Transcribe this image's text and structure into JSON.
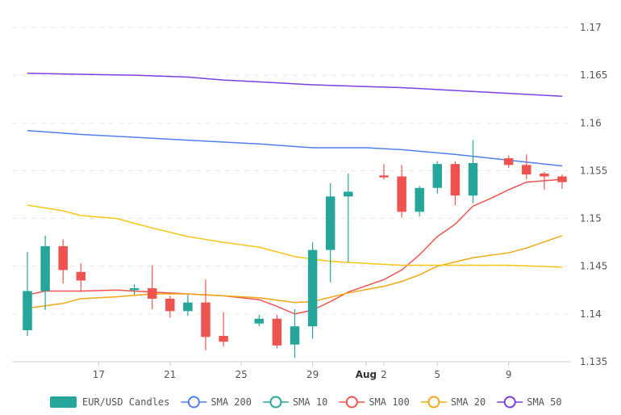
{
  "chart_data": {
    "type": "candlestick",
    "title": "",
    "ylim": [
      1.135,
      1.17
    ],
    "y_ticks": [
      "1.135",
      "1.14",
      "1.145",
      "1.15",
      "1.155",
      "1.16",
      "1.165",
      "1.17"
    ],
    "x_range": [
      "2021-07-13",
      "2021-08-12"
    ],
    "x_ticks": [
      {
        "date": "2021-07-17",
        "label": "17",
        "bold": false
      },
      {
        "date": "2021-07-21",
        "label": "21",
        "bold": false
      },
      {
        "date": "2021-07-25",
        "label": "25",
        "bold": false
      },
      {
        "date": "2021-07-29",
        "label": "29",
        "bold": false
      },
      {
        "date": "2021-08-01",
        "label": "Aug",
        "bold": true
      },
      {
        "date": "2021-08-02",
        "label": "2",
        "bold": false
      },
      {
        "date": "2021-08-05",
        "label": "5",
        "bold": false
      },
      {
        "date": "2021-08-09",
        "label": "9",
        "bold": false
      }
    ],
    "colors": {
      "up": "#26a69a",
      "down": "#ef5350",
      "grid": "#e6e6e6",
      "axis": "#cccccc"
    },
    "candles": [
      {
        "date": "2021-07-13",
        "open": 1.1383,
        "high": 1.1465,
        "low": 1.1377,
        "close": 1.1424
      },
      {
        "date": "2021-07-14",
        "open": 1.1424,
        "high": 1.1482,
        "low": 1.1404,
        "close": 1.1471
      },
      {
        "date": "2021-07-15",
        "open": 1.1471,
        "high": 1.1478,
        "low": 1.1432,
        "close": 1.1446
      },
      {
        "date": "2021-07-16",
        "open": 1.1444,
        "high": 1.1453,
        "low": 1.1423,
        "close": 1.1435
      },
      {
        "date": "2021-07-19",
        "open": 1.1425,
        "high": 1.1431,
        "low": 1.142,
        "close": 1.1427
      },
      {
        "date": "2021-07-20",
        "open": 1.1427,
        "high": 1.1451,
        "low": 1.1405,
        "close": 1.1416
      },
      {
        "date": "2021-07-21",
        "open": 1.1416,
        "high": 1.1419,
        "low": 1.1396,
        "close": 1.1403
      },
      {
        "date": "2021-07-22",
        "open": 1.1403,
        "high": 1.142,
        "low": 1.1398,
        "close": 1.1412
      },
      {
        "date": "2021-07-23",
        "open": 1.1412,
        "high": 1.1436,
        "low": 1.1362,
        "close": 1.1376
      },
      {
        "date": "2021-07-24",
        "open": 1.1377,
        "high": 1.1402,
        "low": 1.1366,
        "close": 1.1371
      },
      {
        "date": "2021-07-26",
        "open": 1.139,
        "high": 1.1399,
        "low": 1.1387,
        "close": 1.1395
      },
      {
        "date": "2021-07-27",
        "open": 1.1395,
        "high": 1.1399,
        "low": 1.1364,
        "close": 1.1367
      },
      {
        "date": "2021-07-28",
        "open": 1.1368,
        "high": 1.1405,
        "low": 1.1354,
        "close": 1.1387
      },
      {
        "date": "2021-07-29",
        "open": 1.1387,
        "high": 1.1475,
        "low": 1.1374,
        "close": 1.1467
      },
      {
        "date": "2021-07-30",
        "open": 1.1467,
        "high": 1.1537,
        "low": 1.1433,
        "close": 1.1523
      },
      {
        "date": "2021-07-31",
        "open": 1.1523,
        "high": 1.1547,
        "low": 1.1454,
        "close": 1.1528
      },
      {
        "date": "2021-08-02",
        "open": 1.1545,
        "high": 1.1557,
        "low": 1.1541,
        "close": 1.1543
      },
      {
        "date": "2021-08-03",
        "open": 1.1544,
        "high": 1.1556,
        "low": 1.1501,
        "close": 1.1507
      },
      {
        "date": "2021-08-04",
        "open": 1.1507,
        "high": 1.1534,
        "low": 1.1502,
        "close": 1.1532
      },
      {
        "date": "2021-08-05",
        "open": 1.1532,
        "high": 1.156,
        "low": 1.1526,
        "close": 1.1557
      },
      {
        "date": "2021-08-06",
        "open": 1.1557,
        "high": 1.156,
        "low": 1.1514,
        "close": 1.1524
      },
      {
        "date": "2021-08-07",
        "open": 1.1524,
        "high": 1.1582,
        "low": 1.1516,
        "close": 1.1558
      },
      {
        "date": "2021-08-09",
        "open": 1.1563,
        "high": 1.1566,
        "low": 1.1553,
        "close": 1.1556
      },
      {
        "date": "2021-08-10",
        "open": 1.1556,
        "high": 1.1567,
        "low": 1.1541,
        "close": 1.1546
      },
      {
        "date": "2021-08-11",
        "open": 1.1547,
        "high": 1.1549,
        "low": 1.153,
        "close": 1.1544
      },
      {
        "date": "2021-08-12",
        "open": 1.1544,
        "high": 1.1546,
        "low": 1.1531,
        "close": 1.1538
      }
    ],
    "series": [
      {
        "name": "SMA 200",
        "color": "#4f7ff3",
        "points": [
          {
            "date": "2021-07-13",
            "value": 1.1592
          },
          {
            "date": "2021-07-16",
            "value": 1.1588
          },
          {
            "date": "2021-07-19",
            "value": 1.1585
          },
          {
            "date": "2021-07-22",
            "value": 1.1582
          },
          {
            "date": "2021-07-26",
            "value": 1.1578
          },
          {
            "date": "2021-07-29",
            "value": 1.1574
          },
          {
            "date": "2021-08-01",
            "value": 1.1574
          },
          {
            "date": "2021-08-03",
            "value": 1.1572
          },
          {
            "date": "2021-08-06",
            "value": 1.1567
          },
          {
            "date": "2021-08-09",
            "value": 1.1561
          },
          {
            "date": "2021-08-12",
            "value": 1.1555
          }
        ]
      },
      {
        "name": "SMA 10",
        "color": "#26a69a",
        "points": []
      },
      {
        "name": "SMA 100",
        "color": "#ef5350",
        "points": [
          {
            "date": "2021-07-13",
            "value": 1.142
          },
          {
            "date": "2021-07-14",
            "value": 1.1424
          },
          {
            "date": "2021-07-16",
            "value": 1.1424
          },
          {
            "date": "2021-07-18",
            "value": 1.1425
          },
          {
            "date": "2021-07-20",
            "value": 1.1423
          },
          {
            "date": "2021-07-22",
            "value": 1.1421
          },
          {
            "date": "2021-07-24",
            "value": 1.1419
          },
          {
            "date": "2021-07-26",
            "value": 1.1415
          },
          {
            "date": "2021-07-27",
            "value": 1.1408
          },
          {
            "date": "2021-07-28",
            "value": 1.14
          },
          {
            "date": "2021-07-29",
            "value": 1.1404
          },
          {
            "date": "2021-07-30",
            "value": 1.1413
          },
          {
            "date": "2021-07-31",
            "value": 1.1423
          },
          {
            "date": "2021-08-02",
            "value": 1.1436
          },
          {
            "date": "2021-08-03",
            "value": 1.1446
          },
          {
            "date": "2021-08-04",
            "value": 1.1462
          },
          {
            "date": "2021-08-05",
            "value": 1.1481
          },
          {
            "date": "2021-08-06",
            "value": 1.1494
          },
          {
            "date": "2021-08-07",
            "value": 1.1513
          },
          {
            "date": "2021-08-08",
            "value": 1.1521
          },
          {
            "date": "2021-08-09",
            "value": 1.153
          },
          {
            "date": "2021-08-10",
            "value": 1.1538
          },
          {
            "date": "2021-08-12",
            "value": 1.1541
          }
        ]
      },
      {
        "name": "SMA 20",
        "color": "#f3a712",
        "points": [
          {
            "date": "2021-07-13",
            "value": 1.1406
          },
          {
            "date": "2021-07-15",
            "value": 1.1411
          },
          {
            "date": "2021-07-16",
            "value": 1.1416
          },
          {
            "date": "2021-07-18",
            "value": 1.1418
          },
          {
            "date": "2021-07-20",
            "value": 1.1421
          },
          {
            "date": "2021-07-22",
            "value": 1.1421
          },
          {
            "date": "2021-07-24",
            "value": 1.1419
          },
          {
            "date": "2021-07-26",
            "value": 1.1417
          },
          {
            "date": "2021-07-28",
            "value": 1.1412
          },
          {
            "date": "2021-07-29",
            "value": 1.1413
          },
          {
            "date": "2021-07-31",
            "value": 1.1422
          },
          {
            "date": "2021-08-02",
            "value": 1.1429
          },
          {
            "date": "2021-08-03",
            "value": 1.1434
          },
          {
            "date": "2021-08-04",
            "value": 1.1441
          },
          {
            "date": "2021-08-05",
            "value": 1.145
          },
          {
            "date": "2021-08-07",
            "value": 1.1459
          },
          {
            "date": "2021-08-09",
            "value": 1.1464
          },
          {
            "date": "2021-08-10",
            "value": 1.1469
          },
          {
            "date": "2021-08-12",
            "value": 1.1482
          }
        ]
      },
      {
        "name": "SMA 50",
        "color": "#7b3fe4",
        "points": [
          {
            "date": "2021-07-13",
            "value": 1.1652
          },
          {
            "date": "2021-07-16",
            "value": 1.1651
          },
          {
            "date": "2021-07-19",
            "value": 1.165
          },
          {
            "date": "2021-07-22",
            "value": 1.1648
          },
          {
            "date": "2021-07-24",
            "value": 1.1645
          },
          {
            "date": "2021-07-26",
            "value": 1.1643
          },
          {
            "date": "2021-07-29",
            "value": 1.164
          },
          {
            "date": "2021-08-01",
            "value": 1.1638
          },
          {
            "date": "2021-08-03",
            "value": 1.1637
          },
          {
            "date": "2021-08-06",
            "value": 1.1634
          },
          {
            "date": "2021-08-09",
            "value": 1.1631
          },
          {
            "date": "2021-08-12",
            "value": 1.1628
          }
        ]
      },
      {
        "name": "",
        "color": "#f5c518",
        "points": [
          {
            "date": "2021-07-13",
            "value": 1.1514
          },
          {
            "date": "2021-07-15",
            "value": 1.1508
          },
          {
            "date": "2021-07-16",
            "value": 1.1503
          },
          {
            "date": "2021-07-18",
            "value": 1.15
          },
          {
            "date": "2021-07-20",
            "value": 1.149
          },
          {
            "date": "2021-07-22",
            "value": 1.1481
          },
          {
            "date": "2021-07-24",
            "value": 1.1475
          },
          {
            "date": "2021-07-26",
            "value": 1.147
          },
          {
            "date": "2021-07-28",
            "value": 1.146
          },
          {
            "date": "2021-07-30",
            "value": 1.1455
          },
          {
            "date": "2021-08-01",
            "value": 1.1453
          },
          {
            "date": "2021-08-03",
            "value": 1.1451
          },
          {
            "date": "2021-08-05",
            "value": 1.1451
          },
          {
            "date": "2021-08-07",
            "value": 1.1451
          },
          {
            "date": "2021-08-09",
            "value": 1.1451
          },
          {
            "date": "2021-08-12",
            "value": 1.1449
          }
        ]
      }
    ],
    "legend": {
      "placement": "bottom",
      "items": [
        {
          "label": "EUR/USD Candles",
          "color": "#26a69a",
          "symbol": "rect"
        },
        {
          "label": "SMA 200",
          "color": "#4f7ff3",
          "symbol": "circle"
        },
        {
          "label": "SMA 10",
          "color": "#26a69a",
          "symbol": "circle"
        },
        {
          "label": "SMA 100",
          "color": "#ef5350",
          "symbol": "circle"
        },
        {
          "label": "SMA 20",
          "color": "#f3a712",
          "symbol": "circle"
        },
        {
          "label": "SMA 50",
          "color": "#7b3fe4",
          "symbol": "circle"
        }
      ]
    }
  }
}
